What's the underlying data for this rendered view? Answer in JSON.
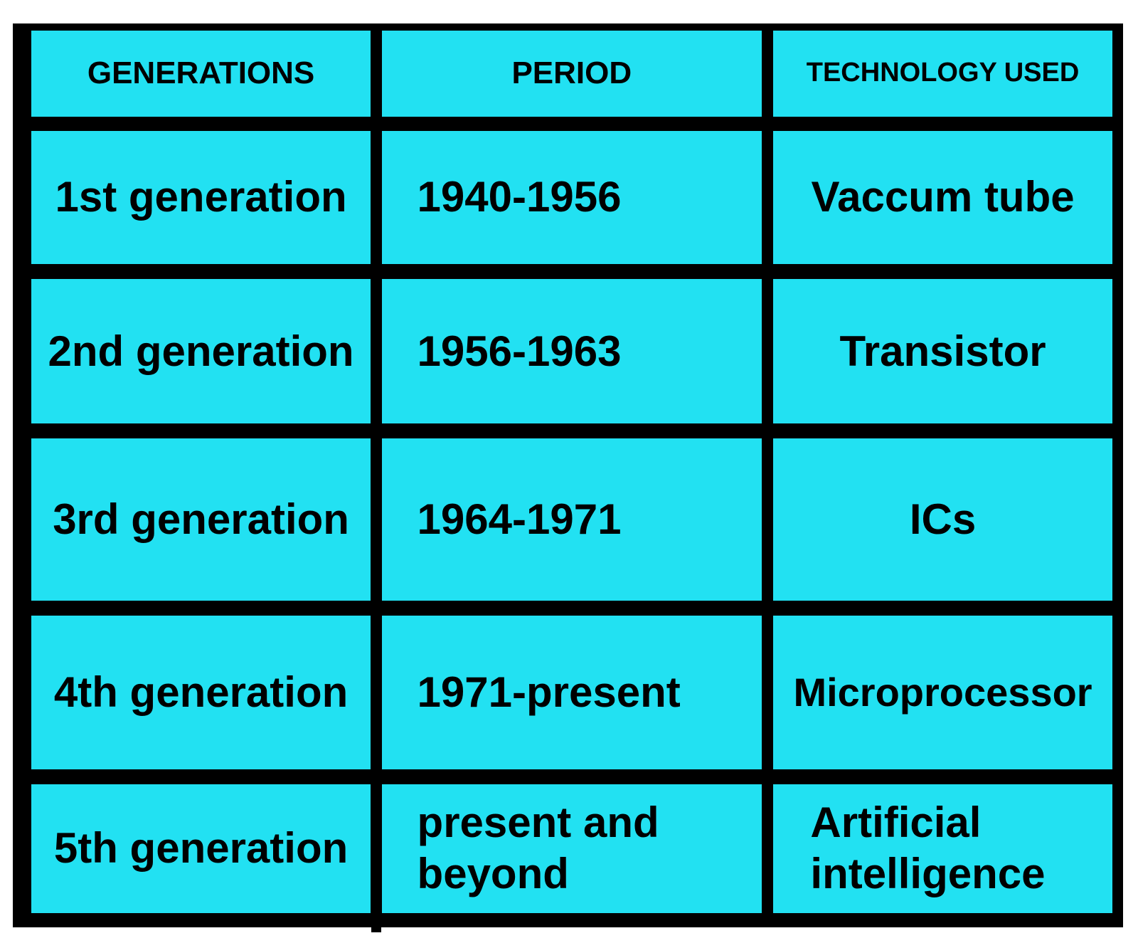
{
  "table": {
    "header": [
      "GENERATIONS",
      "PERIOD",
      "TECHNOLOGY USED"
    ],
    "rows": [
      [
        "1st generation",
        "1940-1956",
        "Vaccum tube"
      ],
      [
        "2nd generation",
        "1956-1963",
        "Transistor"
      ],
      [
        "3rd generation",
        "1964-1971",
        "ICs"
      ],
      [
        "4th generation",
        "1971-present",
        "Microprocessor"
      ],
      [
        "5th generation",
        "present and beyond",
        "Artificial intelligence"
      ]
    ]
  }
}
